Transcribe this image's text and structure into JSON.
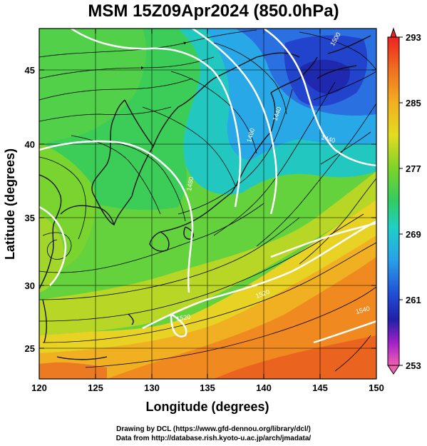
{
  "title": "MSM 15Z09Apr2024 (850.0hPa)",
  "x_axis": {
    "label": "Longitude (degrees)",
    "range": [
      120,
      150
    ],
    "ticks": [
      "120",
      "125",
      "130",
      "135",
      "140",
      "145",
      "150"
    ]
  },
  "y_axis": {
    "label": "Latitude  (degrees)",
    "range": [
      22.4,
      47.6
    ],
    "ticks": [
      "25",
      "30",
      "35",
      "40",
      "45"
    ]
  },
  "colorbar": {
    "range": [
      253,
      293
    ],
    "labels": [
      "293",
      "285",
      "277",
      "269",
      "261",
      "253"
    ],
    "colors": [
      "#ee2222",
      "#f08020",
      "#f2b820",
      "#e6dc20",
      "#9ad61c",
      "#3ccc50",
      "#20d0c0",
      "#2aa8e8",
      "#2656dc",
      "#2020b0",
      "#c020d0",
      "#f05ab0"
    ]
  },
  "contour_labels": [
    "1440",
    "1440",
    "1460",
    "1480",
    "1500",
    "1520",
    "1520",
    "1540"
  ],
  "footer": {
    "line1": "Drawing by DCL (https://www.gfd-dennou.org/library/dcl/)",
    "line2": "Data from http://database.rish.kyoto-u.ac.jp/arch/jmadata/"
  }
}
